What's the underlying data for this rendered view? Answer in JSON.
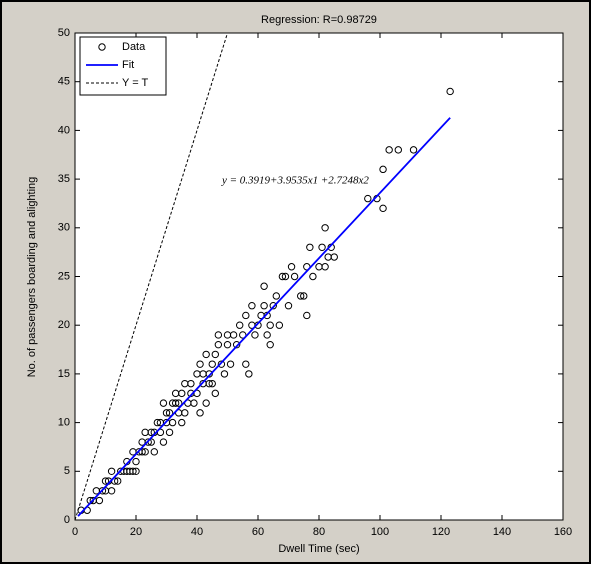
{
  "chart_data": {
    "type": "scatter",
    "title": "Regression: R=0.98729",
    "xlabel": "Dwell Time (sec)",
    "ylabel": "No. of passengers boarding and alighting",
    "annotation": "y = 0.3919+3.9535x1 +2.7248x2",
    "xlim": [
      0,
      160
    ],
    "ylim": [
      0,
      50
    ],
    "xticks": [
      0,
      20,
      40,
      60,
      80,
      100,
      120,
      140,
      160
    ],
    "yticks": [
      0,
      5,
      10,
      15,
      20,
      25,
      30,
      35,
      40,
      45,
      50
    ],
    "grid": false,
    "legend": "upper left",
    "series": [
      {
        "name": "Data",
        "color": "#000000",
        "marker": "circle",
        "x": [
          2,
          4,
          5,
          6,
          7,
          8,
          9,
          10,
          10,
          11,
          12,
          12,
          13,
          14,
          15,
          16,
          17,
          17,
          18,
          19,
          19,
          20,
          20,
          21,
          22,
          22,
          23,
          23,
          24,
          25,
          25,
          26,
          26,
          27,
          28,
          28,
          29,
          29,
          30,
          30,
          31,
          31,
          32,
          32,
          33,
          33,
          34,
          34,
          35,
          35,
          36,
          36,
          37,
          38,
          38,
          39,
          40,
          40,
          41,
          41,
          42,
          42,
          43,
          43,
          44,
          44,
          45,
          45,
          46,
          46,
          47,
          47,
          48,
          49,
          50,
          50,
          51,
          52,
          53,
          54,
          55,
          56,
          56,
          57,
          58,
          58,
          59,
          60,
          61,
          62,
          62,
          63,
          63,
          64,
          64,
          65,
          66,
          67,
          68,
          69,
          70,
          71,
          72,
          74,
          75,
          76,
          76,
          77,
          78,
          80,
          81,
          82,
          82,
          83,
          84,
          85,
          96,
          99,
          101,
          101,
          103,
          106,
          111,
          123
        ],
        "y": [
          1,
          1,
          2,
          2,
          3,
          2,
          3,
          3,
          4,
          4,
          3,
          5,
          4,
          4,
          5,
          5,
          6,
          5,
          5,
          5,
          7,
          6,
          5,
          7,
          8,
          7,
          9,
          7,
          8,
          9,
          8,
          7,
          9,
          10,
          9,
          10,
          8,
          12,
          10,
          11,
          9,
          11,
          12,
          10,
          12,
          13,
          11,
          12,
          13,
          10,
          14,
          11,
          12,
          14,
          13,
          12,
          15,
          13,
          11,
          16,
          14,
          15,
          12,
          17,
          14,
          15,
          16,
          14,
          17,
          13,
          18,
          19,
          16,
          15,
          18,
          19,
          16,
          19,
          18,
          20,
          19,
          21,
          16,
          15,
          22,
          20,
          19,
          20,
          21,
          24,
          22,
          21,
          19,
          20,
          18,
          22,
          23,
          20,
          25,
          25,
          22,
          26,
          25,
          23,
          23,
          26,
          21,
          28,
          25,
          26,
          28,
          30,
          26,
          27,
          28,
          27,
          33,
          33,
          36,
          32,
          38,
          38,
          38,
          44
        ]
      },
      {
        "name": "Fit",
        "color": "#0000ff",
        "line_style": "solid",
        "x": [
          1,
          123
        ],
        "y": [
          0.4,
          41.3
        ]
      },
      {
        "name": "Y = T",
        "color": "#000000",
        "line_style": "dashed",
        "x": [
          0,
          50
        ],
        "y": [
          0,
          50
        ]
      }
    ]
  }
}
